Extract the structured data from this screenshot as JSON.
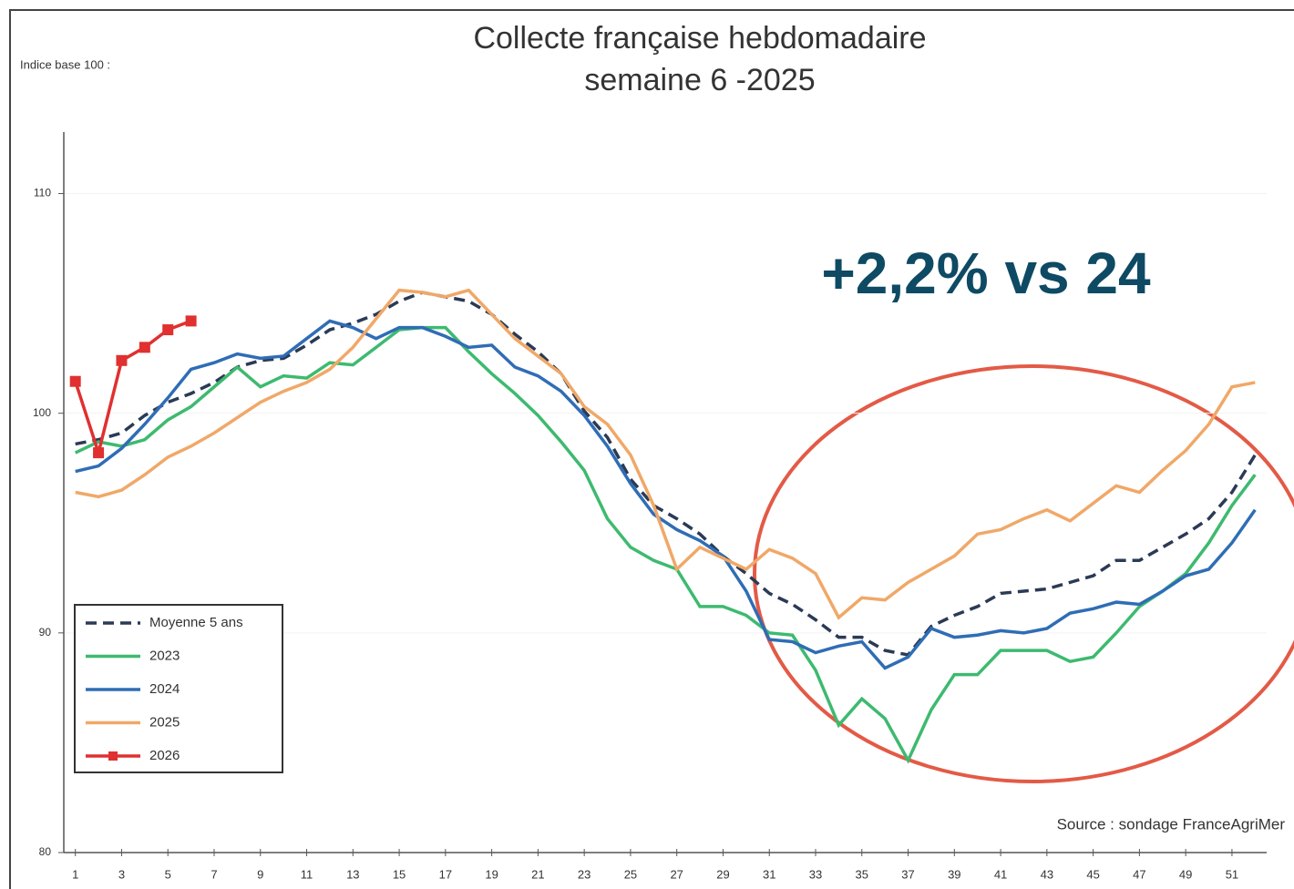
{
  "chart_data": {
    "type": "line",
    "title": [
      "Collecte française hebdomadaire",
      "semaine 6 -2025"
    ],
    "ylabel": "Indice base 100 :",
    "annotation": "+2,2% vs 24",
    "source": "Source : sondage FranceAgriMer",
    "x": [
      1,
      2,
      3,
      4,
      5,
      6,
      7,
      8,
      9,
      10,
      11,
      12,
      13,
      14,
      15,
      16,
      17,
      18,
      19,
      20,
      21,
      22,
      23,
      24,
      25,
      26,
      27,
      28,
      29,
      30,
      31,
      32,
      33,
      34,
      35,
      36,
      37,
      38,
      39,
      40,
      41,
      42,
      43,
      44,
      45,
      46,
      47,
      48,
      49,
      50,
      51,
      52
    ],
    "xlim": [
      0.5,
      52.5
    ],
    "xticks": [
      1,
      3,
      5,
      7,
      9,
      11,
      13,
      15,
      17,
      19,
      21,
      23,
      25,
      27,
      29,
      31,
      33,
      35,
      37,
      39,
      41,
      43,
      45,
      47,
      49,
      51
    ],
    "ylim": [
      80,
      112.8
    ],
    "yticks": [
      80,
      90,
      100,
      110
    ],
    "grid": true,
    "legend": "bottom-left",
    "series": [
      {
        "name": "Moyenne 5 ans",
        "color": "#2b3a55",
        "dashed": true,
        "values": [
          98.6,
          98.8,
          99.1,
          99.9,
          100.5,
          100.9,
          101.4,
          102.1,
          102.4,
          102.5,
          103.1,
          103.8,
          104.1,
          104.5,
          105.1,
          105.5,
          105.3,
          105.1,
          104.5,
          103.6,
          102.8,
          101.8,
          100.1,
          98.9,
          97.0,
          95.8,
          95.2,
          94.5,
          93.5,
          92.7,
          91.8,
          91.3,
          90.6,
          89.8,
          89.8,
          89.2,
          89.0,
          90.3,
          90.8,
          91.2,
          91.8,
          91.9,
          92.0,
          92.3,
          92.6,
          93.3,
          93.3,
          93.9,
          94.5,
          95.2,
          96.4,
          98.1
        ]
      },
      {
        "name": "2023",
        "color": "#3dba6f",
        "values": [
          98.2,
          98.7,
          98.5,
          98.8,
          99.7,
          100.3,
          101.2,
          102.1,
          101.2,
          101.7,
          101.6,
          102.3,
          102.2,
          103.0,
          103.8,
          103.9,
          103.9,
          102.8,
          101.8,
          100.9,
          99.9,
          98.7,
          97.4,
          95.2,
          93.9,
          93.3,
          92.9,
          91.2,
          91.2,
          90.8,
          90.0,
          89.9,
          88.3,
          85.8,
          87.0,
          86.1,
          84.2,
          86.5,
          88.1,
          88.1,
          89.2,
          89.2,
          89.2,
          88.7,
          88.9,
          90.0,
          91.2,
          91.9,
          92.7,
          94.1,
          95.8,
          97.2
        ]
      },
      {
        "name": "2024",
        "color": "#2f6db5",
        "values": [
          97.35,
          97.6,
          98.4,
          99.5,
          100.7,
          102.0,
          102.3,
          102.7,
          102.5,
          102.6,
          103.4,
          104.2,
          103.9,
          103.4,
          103.9,
          103.9,
          103.5,
          103.0,
          103.1,
          102.1,
          101.7,
          101.0,
          99.9,
          98.5,
          96.8,
          95.4,
          94.7,
          94.2,
          93.5,
          91.9,
          89.7,
          89.6,
          89.1,
          89.4,
          89.6,
          88.4,
          88.9,
          90.2,
          89.8,
          89.9,
          90.1,
          90.0,
          90.2,
          90.9,
          91.1,
          91.4,
          91.3,
          91.9,
          92.6,
          92.9,
          94.1,
          95.6
        ]
      },
      {
        "name": "2025",
        "color": "#f0a868",
        "values": [
          96.4,
          96.2,
          96.5,
          97.2,
          98.0,
          98.5,
          99.1,
          99.8,
          100.5,
          101.0,
          101.4,
          102.0,
          103.0,
          104.3,
          105.6,
          105.5,
          105.3,
          105.6,
          104.5,
          103.4,
          102.6,
          101.8,
          100.3,
          99.5,
          98.1,
          95.8,
          92.9,
          93.9,
          93.4,
          92.9,
          93.8,
          93.4,
          92.7,
          90.7,
          91.6,
          91.5,
          92.3,
          92.9,
          93.5,
          94.5,
          94.7,
          95.2,
          95.6,
          95.1,
          95.9,
          96.7,
          96.4,
          97.4,
          98.3,
          99.5,
          101.2,
          101.4
        ]
      },
      {
        "name": "2026",
        "color": "#e03030",
        "marker": true,
        "values": [
          101.45,
          98.2,
          102.4,
          103.0,
          103.8,
          104.2,
          null,
          null,
          null,
          null,
          null,
          null,
          null,
          null,
          null,
          null,
          null,
          null,
          null,
          null,
          null,
          null,
          null,
          null,
          null,
          null,
          null,
          null,
          null,
          null,
          null,
          null,
          null,
          null,
          null,
          null,
          null,
          null,
          null,
          null,
          null,
          null,
          null,
          null,
          null,
          null,
          null,
          null,
          null,
          null,
          null,
          null
        ]
      }
    ]
  }
}
